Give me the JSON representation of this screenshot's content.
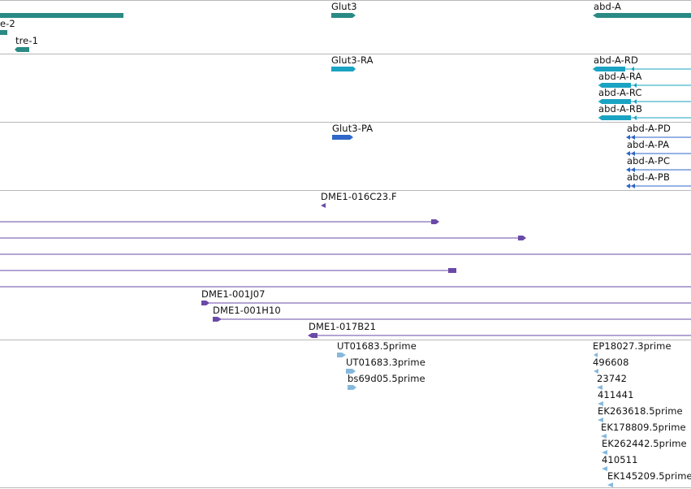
{
  "tracks": {
    "genes": {
      "color": "#2a8a85",
      "labels": [
        "e-2",
        "tre-1",
        "Glut3",
        "abd-A"
      ]
    },
    "transcripts": {
      "color": "#1aa3c2",
      "labels": [
        "Glut3-RA",
        "abd-A-RD",
        "abd-A-RA",
        "abd-A-RC",
        "abd-A-RB"
      ]
    },
    "proteins": {
      "color": "#2f66c9",
      "labels": [
        "Glut3-PA",
        "abd-A-PD",
        "abd-A-PA",
        "abd-A-PC",
        "abd-A-PB"
      ]
    },
    "clones": {
      "color": "#6a4aa8",
      "labels": [
        "DME1-016C23.F",
        "DME1-001J07",
        "DME1-001H10",
        "DME1-017B21"
      ]
    },
    "ests": {
      "color": "#86b8dd",
      "labels": [
        "UT01683.5prime",
        "UT01683.3prime",
        "bs69d05.5prime",
        "EP18027.3prime",
        "496608",
        "23742",
        "411441",
        "EK263618.5prime",
        "EK178809.5prime",
        "EK262442.5prime",
        "410511",
        "EK145209.5prime"
      ]
    }
  }
}
